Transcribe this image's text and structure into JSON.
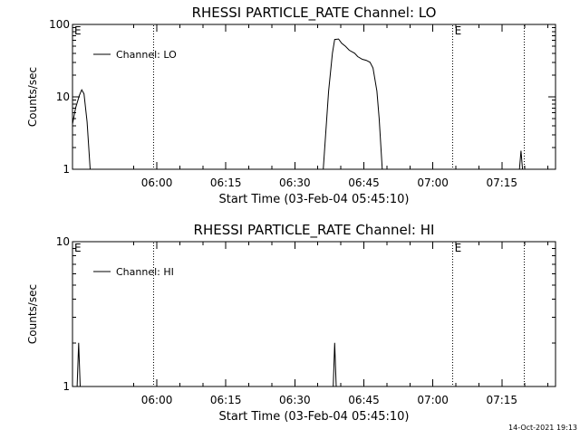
{
  "footer": {
    "timestamp": "14-Oct-2021 19:13"
  },
  "chart_data": [
    {
      "type": "line",
      "title": "RHESSI PARTICLE_RATE Channel: LO",
      "xlabel": "Start Time (03-Feb-04 05:45:10)",
      "ylabel": "Counts/sec",
      "yscale": "log",
      "xlim": [
        0,
        6300
      ],
      "ylim": [
        1,
        100
      ],
      "x_ticks": [
        {
          "value": 1100,
          "label": "06:00"
        },
        {
          "value": 2000,
          "label": "06:15"
        },
        {
          "value": 2900,
          "label": "06:30"
        },
        {
          "value": 3800,
          "label": "06:45"
        },
        {
          "value": 4700,
          "label": "07:00"
        },
        {
          "value": 5600,
          "label": "07:15"
        }
      ],
      "y_ticks": [
        {
          "value": 1,
          "label": "1"
        },
        {
          "value": 10,
          "label": "10"
        },
        {
          "value": 100,
          "label": "100"
        }
      ],
      "vertical_lines": [
        1060,
        4960,
        5890
      ],
      "markers": [
        {
          "x": 0,
          "label": "E"
        },
        {
          "x": 4960,
          "label": "E"
        }
      ],
      "legend": {
        "placement": "top-left"
      },
      "series": [
        {
          "name": "Channel: LO",
          "segments": [
            [
              [
                0,
                4.2
              ],
              [
                40,
                7
              ],
              [
                90,
                10.5
              ],
              [
                120,
                12.5
              ],
              [
                150,
                11
              ],
              [
                190,
                4.5
              ],
              [
                230,
                1
              ]
            ],
            [
              [
                3270,
                1
              ],
              [
                3340,
                12
              ],
              [
                3390,
                40
              ],
              [
                3420,
                62
              ],
              [
                3470,
                63
              ],
              [
                3510,
                55
              ],
              [
                3560,
                50
              ],
              [
                3610,
                44
              ],
              [
                3680,
                40
              ],
              [
                3720,
                36
              ],
              [
                3780,
                33
              ],
              [
                3830,
                32
              ],
              [
                3880,
                30
              ],
              [
                3920,
                25
              ],
              [
                3970,
                12
              ],
              [
                4000,
                5
              ],
              [
                4040,
                1
              ]
            ],
            [
              [
                5830,
                1
              ],
              [
                5850,
                1.8
              ],
              [
                5870,
                1
              ]
            ]
          ]
        }
      ]
    },
    {
      "type": "line",
      "title": "RHESSI PARTICLE_RATE Channel: HI",
      "xlabel": "Start Time (03-Feb-04 05:45:10)",
      "ylabel": "Counts/sec",
      "yscale": "log",
      "xlim": [
        0,
        6300
      ],
      "ylim": [
        1,
        10
      ],
      "x_ticks": [
        {
          "value": 1100,
          "label": "06:00"
        },
        {
          "value": 2000,
          "label": "06:15"
        },
        {
          "value": 2900,
          "label": "06:30"
        },
        {
          "value": 3800,
          "label": "06:45"
        },
        {
          "value": 4700,
          "label": "07:00"
        },
        {
          "value": 5600,
          "label": "07:15"
        }
      ],
      "y_ticks": [
        {
          "value": 1,
          "label": "1"
        },
        {
          "value": 10,
          "label": "10"
        }
      ],
      "vertical_lines": [
        1060,
        4960,
        5890
      ],
      "markers": [
        {
          "x": 0,
          "label": "E"
        },
        {
          "x": 4960,
          "label": "E"
        }
      ],
      "legend": {
        "placement": "top-left"
      },
      "series": [
        {
          "name": "Channel: HI",
          "segments": [
            [
              [
                60,
                1
              ],
              [
                80,
                2
              ],
              [
                100,
                1
              ]
            ],
            [
              [
                3400,
                1
              ],
              [
                3420,
                2
              ],
              [
                3440,
                1
              ]
            ]
          ]
        }
      ]
    }
  ]
}
